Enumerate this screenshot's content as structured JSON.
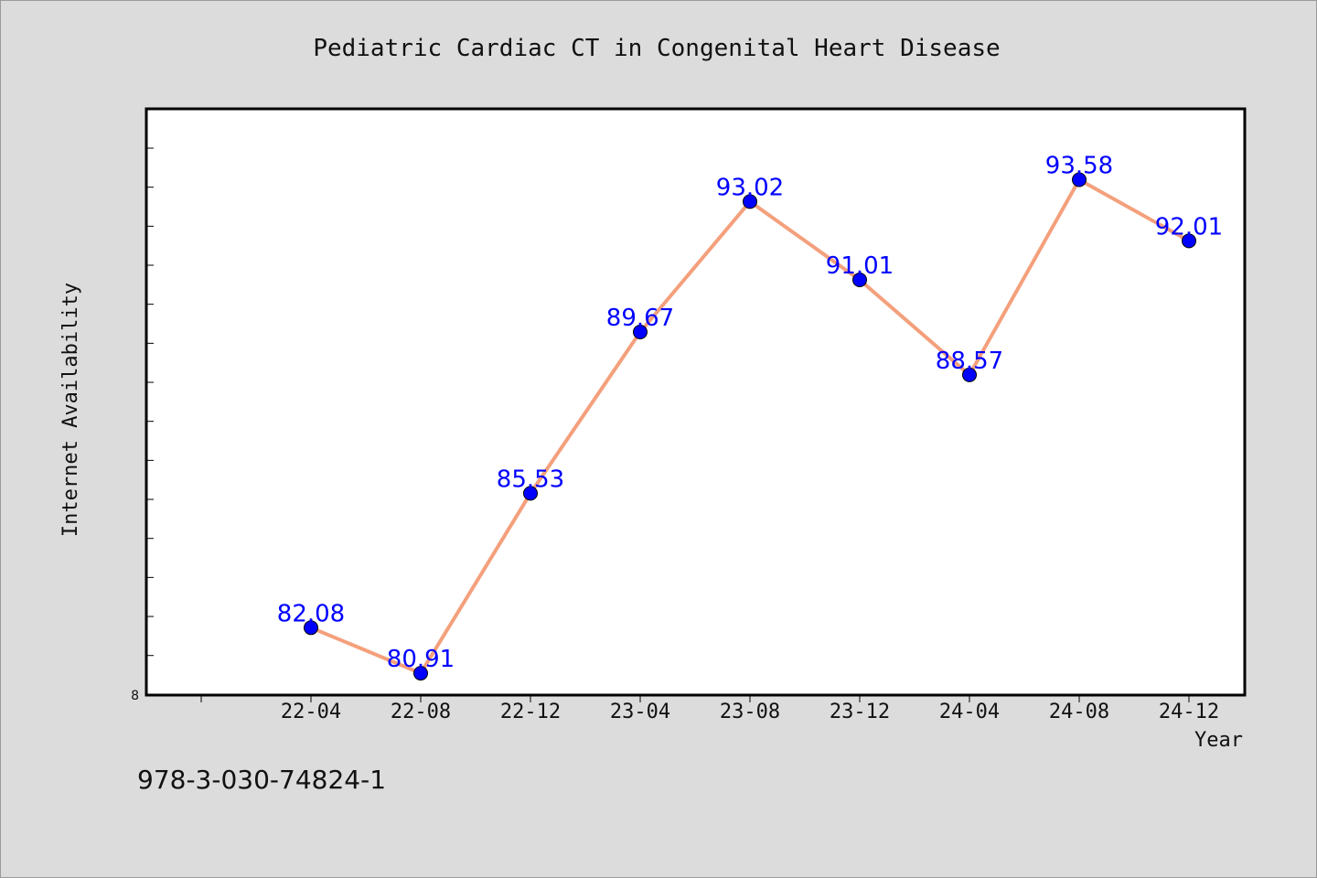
{
  "chart_data": {
    "type": "line",
    "title": "Pediatric Cardiac CT in Congenital Heart Disease",
    "xlabel": "Year",
    "ylabel": "Internet Availability",
    "categories": [
      "22-04",
      "22-08",
      "22-12",
      "23-04",
      "23-08",
      "23-12",
      "24-04",
      "24-08",
      "24-12"
    ],
    "series": [
      {
        "values": [
          82.08,
          80.91,
          85.53,
          89.67,
          93.02,
          91.01,
          88.57,
          93.58,
          92.01
        ],
        "data_labels": [
          "82.08",
          "80.91",
          "85.53",
          "89.67",
          "93.02",
          "91.01",
          "88.57",
          "93.58",
          "92.01"
        ],
        "line_color": "#f4a07c",
        "marker_color": "#0000ff"
      }
    ],
    "ylim_label": "8",
    "ylim": [
      80.35,
      95.4
    ],
    "grid": false,
    "legend": "none"
  },
  "footer": {
    "code": "978-3-030-74824-1"
  },
  "colors": {
    "background": "#dcdcdc",
    "plot_background": "#ffffff",
    "label": "#0000ff"
  }
}
